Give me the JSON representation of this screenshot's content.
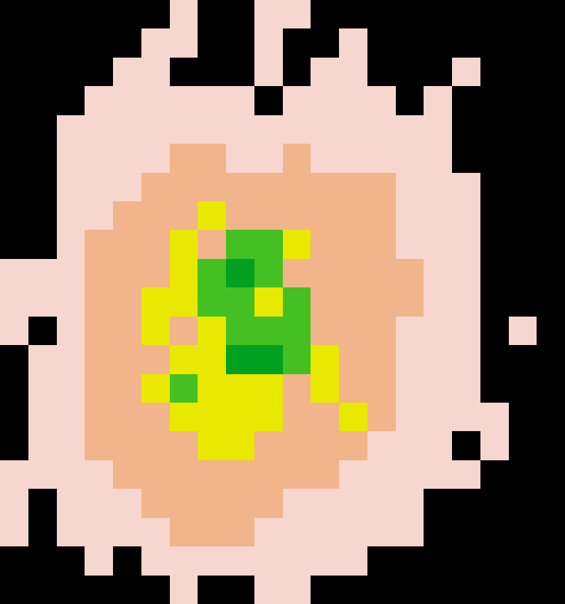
{
  "chart_data": {
    "type": "heatmap",
    "tick_labels": false,
    "grid": false,
    "zlim": [
      1,
      5
    ],
    "cells": [
      [
        null,
        null,
        null,
        null,
        null,
        null,
        1,
        null,
        null,
        1,
        1,
        null,
        null,
        null,
        null,
        null,
        null,
        null,
        null,
        null
      ],
      [
        null,
        null,
        null,
        null,
        null,
        1,
        1,
        null,
        null,
        1,
        null,
        null,
        1,
        null,
        null,
        null,
        null,
        null,
        null,
        null
      ],
      [
        null,
        null,
        null,
        null,
        1,
        1,
        null,
        null,
        null,
        1,
        null,
        1,
        1,
        null,
        null,
        null,
        1,
        null,
        null,
        null
      ],
      [
        null,
        null,
        null,
        1,
        1,
        1,
        1,
        1,
        1,
        null,
        1,
        1,
        1,
        1,
        null,
        1,
        null,
        null,
        null,
        null
      ],
      [
        null,
        null,
        1,
        1,
        1,
        1,
        1,
        1,
        1,
        1,
        1,
        1,
        1,
        1,
        1,
        1,
        null,
        null,
        null,
        null
      ],
      [
        null,
        null,
        1,
        1,
        1,
        1,
        2,
        2,
        1,
        1,
        2,
        1,
        1,
        1,
        1,
        1,
        null,
        null,
        null,
        null
      ],
      [
        null,
        null,
        1,
        1,
        1,
        2,
        2,
        2,
        2,
        2,
        2,
        2,
        2,
        2,
        1,
        1,
        1,
        null,
        null,
        null
      ],
      [
        null,
        null,
        1,
        1,
        2,
        2,
        2,
        3,
        2,
        2,
        2,
        2,
        2,
        2,
        1,
        1,
        1,
        null,
        null,
        null
      ],
      [
        null,
        null,
        1,
        2,
        2,
        2,
        3,
        2,
        4,
        4,
        3,
        2,
        2,
        2,
        1,
        1,
        1,
        null,
        null,
        null
      ],
      [
        1,
        1,
        1,
        2,
        2,
        2,
        3,
        4,
        5,
        4,
        2,
        2,
        2,
        2,
        2,
        1,
        1,
        null,
        null,
        null
      ],
      [
        1,
        1,
        1,
        2,
        2,
        3,
        3,
        4,
        4,
        3,
        4,
        2,
        2,
        2,
        2,
        1,
        1,
        null,
        null,
        null
      ],
      [
        1,
        null,
        1,
        2,
        2,
        3,
        2,
        3,
        4,
        4,
        4,
        2,
        2,
        2,
        1,
        1,
        1,
        null,
        1,
        null
      ],
      [
        null,
        1,
        1,
        2,
        2,
        2,
        3,
        3,
        5,
        5,
        4,
        3,
        2,
        2,
        1,
        1,
        1,
        null,
        null,
        null
      ],
      [
        null,
        1,
        1,
        2,
        2,
        3,
        4,
        3,
        3,
        3,
        2,
        3,
        2,
        2,
        1,
        1,
        1,
        null,
        null,
        null
      ],
      [
        null,
        1,
        1,
        2,
        2,
        2,
        3,
        3,
        3,
        3,
        2,
        2,
        3,
        2,
        1,
        1,
        1,
        1,
        null,
        null
      ],
      [
        null,
        1,
        1,
        2,
        2,
        2,
        2,
        3,
        3,
        2,
        2,
        2,
        2,
        1,
        1,
        1,
        null,
        1,
        null,
        null
      ],
      [
        1,
        1,
        1,
        1,
        2,
        2,
        2,
        2,
        2,
        2,
        2,
        2,
        1,
        1,
        1,
        1,
        1,
        null,
        null,
        null
      ],
      [
        1,
        null,
        1,
        1,
        1,
        2,
        2,
        2,
        2,
        2,
        1,
        1,
        1,
        1,
        1,
        null,
        null,
        null,
        null,
        null
      ],
      [
        1,
        null,
        1,
        1,
        1,
        1,
        2,
        2,
        2,
        1,
        1,
        1,
        1,
        1,
        1,
        null,
        null,
        null,
        null,
        null
      ],
      [
        null,
        null,
        null,
        1,
        null,
        1,
        1,
        1,
        1,
        1,
        1,
        1,
        1,
        null,
        null,
        null,
        null,
        null,
        null,
        null
      ],
      [
        null,
        null,
        null,
        null,
        null,
        null,
        1,
        null,
        null,
        1,
        1,
        null,
        null,
        null,
        null,
        null,
        null,
        null,
        null,
        null
      ]
    ]
  }
}
